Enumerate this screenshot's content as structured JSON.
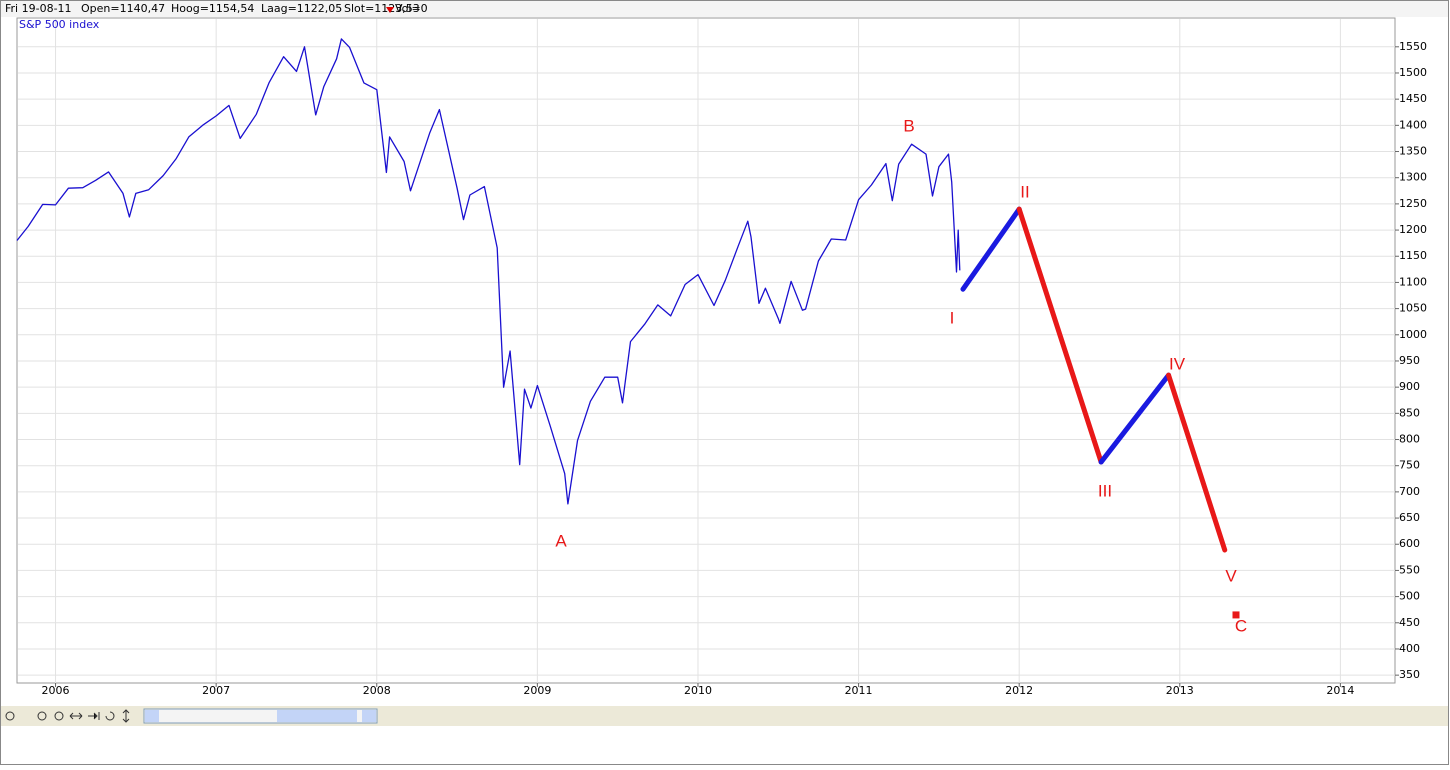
{
  "header": {
    "date": "Fri 19-08-11",
    "open": "Open=1140,47",
    "high": "Hoog=1154,54",
    "low": "Laag=1122,05",
    "close": "Slot=1123,53",
    "volume": "Vol=0"
  },
  "chart_data": {
    "type": "line",
    "xlim": [
      2005.76,
      2014.34
    ],
    "xticks": [
      2006,
      2007,
      2008,
      2009,
      2010,
      2011,
      2012,
      2013,
      2014
    ],
    "ylim": [
      335,
      1605
    ],
    "yticks": [
      350,
      400,
      450,
      500,
      550,
      600,
      650,
      700,
      750,
      800,
      850,
      900,
      950,
      1000,
      1050,
      1100,
      1150,
      1200,
      1250,
      1300,
      1350,
      1400,
      1450,
      1500,
      1550
    ],
    "grid": true,
    "series": [
      {
        "name": "S&P 500 index",
        "color": "#1a10d0",
        "x": [
          2005.76,
          2005.83,
          2005.92,
          2006.0,
          2006.08,
          2006.17,
          2006.25,
          2006.33,
          2006.42,
          2006.46,
          2006.5,
          2006.58,
          2006.67,
          2006.75,
          2006.83,
          2006.92,
          2007.0,
          2007.08,
          2007.15,
          2007.25,
          2007.33,
          2007.42,
          2007.5,
          2007.55,
          2007.62,
          2007.67,
          2007.75,
          2007.78,
          2007.83,
          2007.92,
          2008.0,
          2008.06,
          2008.08,
          2008.17,
          2008.21,
          2008.33,
          2008.39,
          2008.5,
          2008.54,
          2008.58,
          2008.67,
          2008.75,
          2008.79,
          2008.83,
          2008.89,
          2008.92,
          2008.96,
          2009.0,
          2009.08,
          2009.17,
          2009.19,
          2009.25,
          2009.33,
          2009.42,
          2009.5,
          2009.53,
          2009.58,
          2009.67,
          2009.75,
          2009.83,
          2009.92,
          2010.0,
          2010.1,
          2010.17,
          2010.25,
          2010.31,
          2010.33,
          2010.38,
          2010.42,
          2010.5,
          2010.51,
          2010.58,
          2010.65,
          2010.67,
          2010.75,
          2010.83,
          2010.92,
          2011.0,
          2011.08,
          2011.17,
          2011.21,
          2011.25,
          2011.33,
          2011.42,
          2011.46,
          2011.5,
          2011.56,
          2011.58,
          2011.61,
          2011.62,
          2011.63
        ],
        "values": [
          1180,
          1207,
          1249,
          1248,
          1280,
          1281,
          1295,
          1311,
          1270,
          1225,
          1270,
          1277,
          1304,
          1336,
          1378,
          1401,
          1418,
          1438,
          1375,
          1421,
          1482,
          1531,
          1503,
          1550,
          1420,
          1474,
          1527,
          1565,
          1549,
          1481,
          1468,
          1310,
          1378,
          1331,
          1275,
          1386,
          1430,
          1280,
          1220,
          1267,
          1283,
          1166,
          900,
          969,
          752,
          896,
          860,
          903,
          826,
          735,
          677,
          798,
          873,
          919,
          919,
          870,
          987,
          1021,
          1057,
          1036,
          1096,
          1115,
          1056,
          1104,
          1169,
          1217,
          1187,
          1060,
          1089,
          1031,
          1022,
          1102,
          1047,
          1049,
          1141,
          1183,
          1181,
          1258,
          1286,
          1327,
          1256,
          1326,
          1364,
          1345,
          1265,
          1321,
          1345,
          1292,
          1120,
          1200,
          1123
        ]
      },
      {
        "segment_colors": [
          "#1a1ae0",
          "#e81818",
          "#1a1ae0",
          "#e81818"
        ],
        "x": [
          2011.65,
          2012.0,
          2012.51,
          2012.93,
          2013.28
        ],
        "values": [
          1087,
          1240,
          757,
          923,
          589
        ]
      }
    ],
    "target": {
      "x": 2013.35,
      "value": 465,
      "color": "#e81818"
    },
    "wave_labels": [
      "A",
      "B",
      "I",
      "II",
      "III",
      "IV",
      "V",
      "C"
    ],
    "wave_label_color": "#e81818"
  }
}
